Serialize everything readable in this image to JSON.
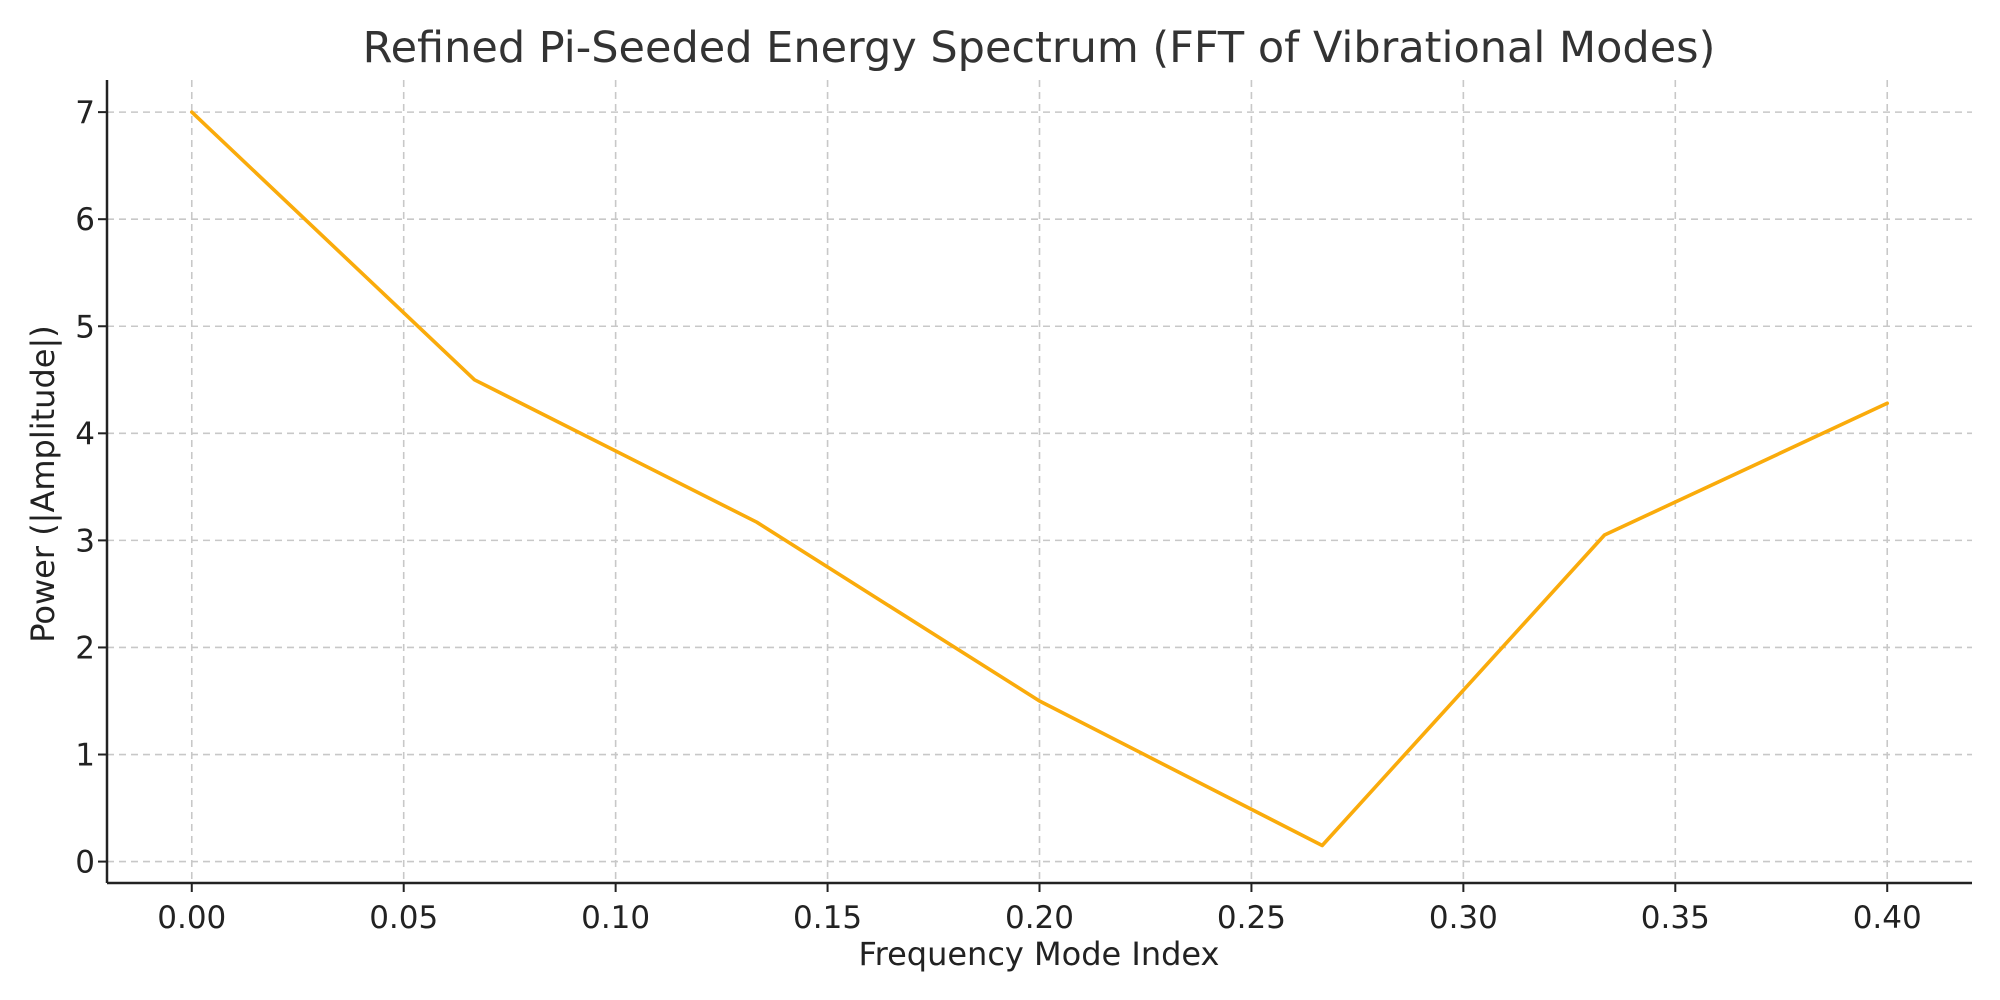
{
  "chart_data": {
    "type": "line",
    "title": "Refined Pi-Seeded Energy Spectrum (FFT of Vibrational Modes)",
    "xlabel": "Frequency Mode Index",
    "ylabel": "Power (|Amplitude|)",
    "xlim": [
      -0.02,
      0.42
    ],
    "ylim": [
      -0.2,
      7.3
    ],
    "x_ticks": [
      "0.00",
      "0.05",
      "0.10",
      "0.15",
      "0.20",
      "0.25",
      "0.30",
      "0.35",
      "0.40"
    ],
    "y_ticks": [
      "0",
      "1",
      "2",
      "3",
      "4",
      "5",
      "6",
      "7"
    ],
    "grid": true,
    "series": [
      {
        "color": "#FAAB0B",
        "x": [
          0.0,
          0.0667,
          0.1333,
          0.2,
          0.2667,
          0.3333,
          0.4
        ],
        "y": [
          7.0,
          4.5,
          3.17,
          1.5,
          0.15,
          3.05,
          4.28
        ]
      }
    ]
  }
}
